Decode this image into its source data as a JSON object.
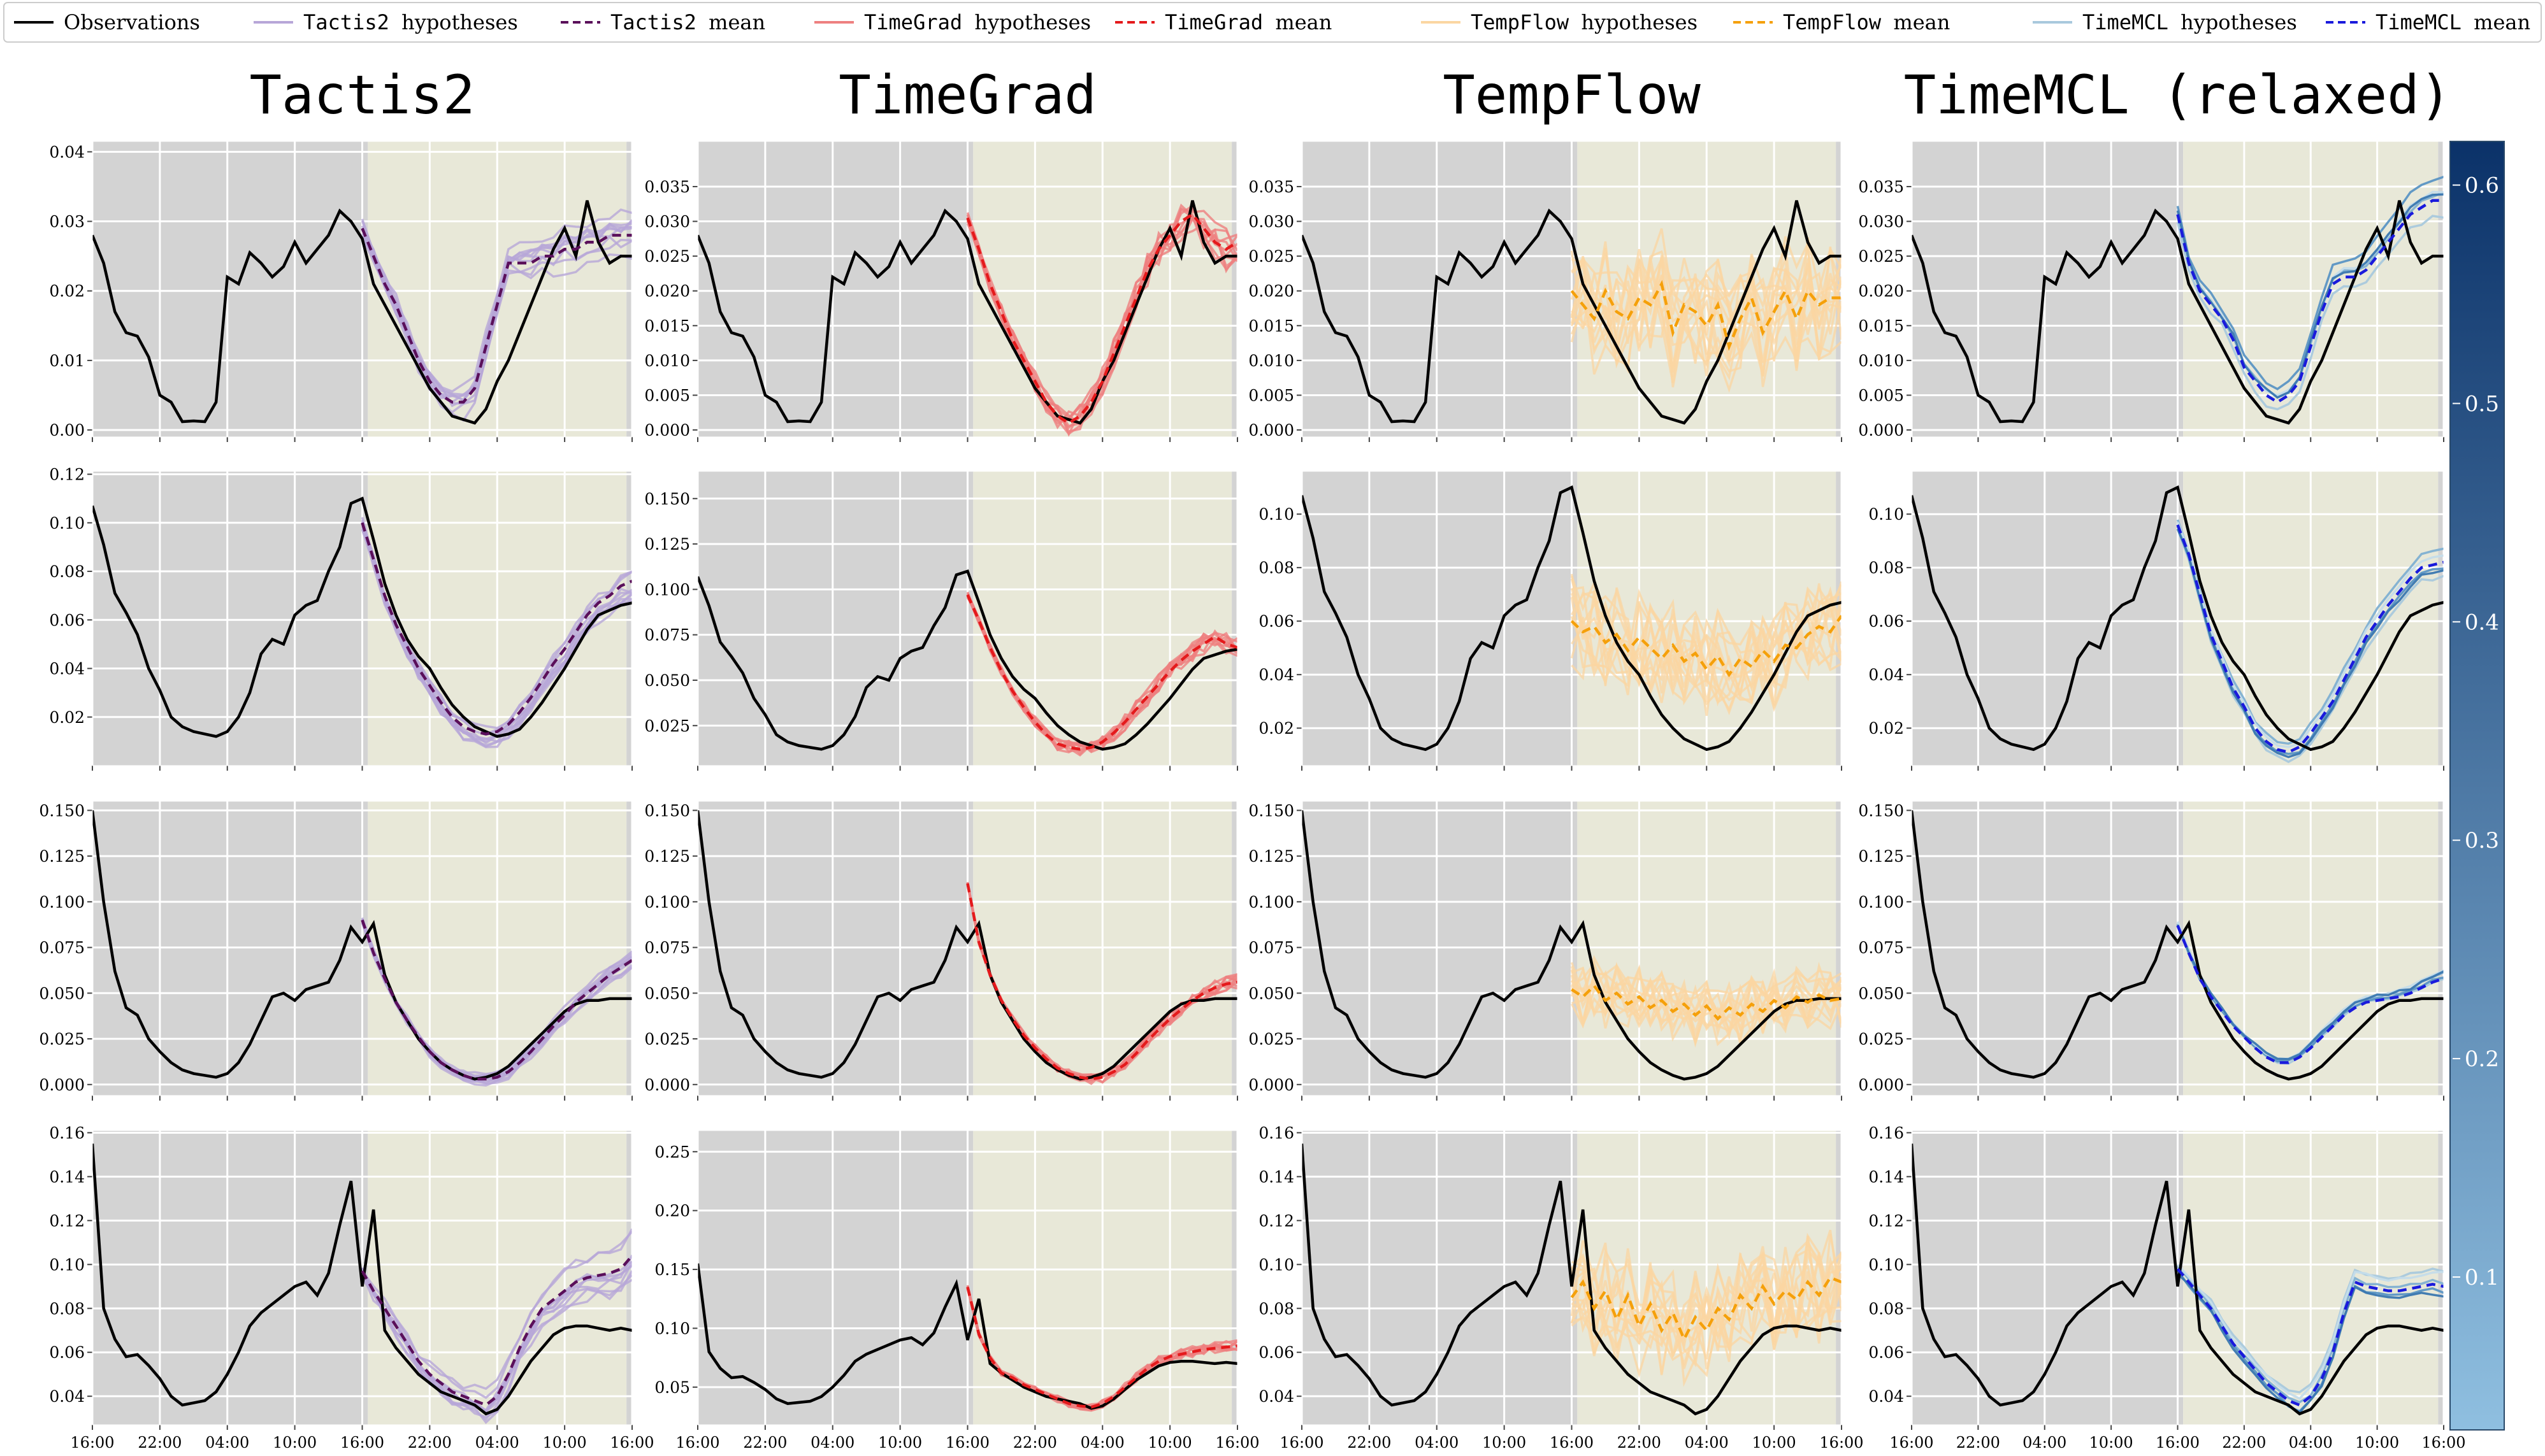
{
  "figure": {
    "type": "line",
    "legend": {
      "placement": "top",
      "entries": [
        {
          "model": "",
          "label": "Observations",
          "color": "#000000",
          "dash": false
        },
        {
          "model": "Tactis2",
          "label": "hypotheses",
          "color": "#b7a6d8",
          "dash": false
        },
        {
          "model": "Tactis2",
          "label": "mean",
          "color": "#5a0f5a",
          "dash": true
        },
        {
          "model": "TimeGrad",
          "label": "hypotheses",
          "color": "#ee8080",
          "dash": false
        },
        {
          "model": "TimeGrad",
          "label": "mean",
          "color": "#e41a1c",
          "dash": true
        },
        {
          "model": "TempFlow",
          "label": "hypotheses",
          "color": "#fbd6a2",
          "dash": false
        },
        {
          "model": "TempFlow",
          "label": "mean",
          "color": "#f5a00a",
          "dash": true
        },
        {
          "model": "TimeMCL",
          "label": "hypotheses",
          "color": "#a9c9dd",
          "dash": false
        },
        {
          "model": "TimeMCL",
          "label": "mean",
          "color": "#1a1adc",
          "dash": true
        }
      ]
    },
    "columns": [
      {
        "title": "Tactis2",
        "hyp_color": "#b7a6d8",
        "mean_color": "#5a0f5a",
        "kind": "tactis"
      },
      {
        "title": "TimeGrad",
        "hyp_color": "#ee8080",
        "mean_color": "#e41a1c",
        "kind": "timegrad"
      },
      {
        "title": "TempFlow",
        "hyp_color": "#fbd6a2",
        "mean_color": "#f5a00a",
        "kind": "tempflow"
      },
      {
        "title": "TimeMCL (relaxed)",
        "hyp_color": "#a9c9dd",
        "mean_color": "#1a1adc",
        "kind": "timemcl"
      }
    ],
    "colors": {
      "context_bg": "#d3d3d3",
      "forecast_bg": "#e8e8d8",
      "grid": "#ffffff",
      "observation": "#000000"
    },
    "colorbar": {
      "ticks": [
        "0.1",
        "0.2",
        "0.3",
        "0.4",
        "0.5",
        "0.6"
      ],
      "range": [
        0.03,
        0.62
      ],
      "color_low": "#8fbfe0",
      "color_high": "#0b3269"
    },
    "xticks": [
      "16:00",
      "22:00",
      "04:00",
      "10:00",
      "16:00",
      "22:00",
      "04:00",
      "10:00",
      "16:00"
    ],
    "x_range": [
      0,
      48
    ],
    "context_end": 24,
    "rows": [
      {
        "ylim": [
          -0.001,
          0.0415
        ],
        "yticks_by_col": [
          [
            "0.00",
            "0.01",
            "0.02",
            "0.03",
            "0.04"
          ],
          [
            "0.000",
            "0.005",
            "0.010",
            "0.015",
            "0.020",
            "0.025",
            "0.030",
            "0.035"
          ],
          [
            "0.000",
            "0.005",
            "0.010",
            "0.015",
            "0.020",
            "0.025",
            "0.030",
            "0.035"
          ],
          [
            "0.000",
            "0.005",
            "0.010",
            "0.015",
            "0.020",
            "0.025",
            "0.030",
            "0.035"
          ]
        ],
        "obs": [
          0.028,
          0.024,
          0.017,
          0.014,
          0.0135,
          0.0105,
          0.005,
          0.004,
          0.0012,
          0.0013,
          0.0012,
          0.004,
          0.022,
          0.021,
          0.0255,
          0.024,
          0.022,
          0.0235,
          0.027,
          0.024,
          0.026,
          0.028,
          0.0315,
          0.03,
          0.0275,
          0.021,
          0.018,
          0.015,
          0.012,
          0.009,
          0.006,
          0.004,
          0.002,
          0.0015,
          0.001,
          0.003,
          0.007,
          0.01,
          0.014,
          0.018,
          0.022,
          0.026,
          0.029,
          0.025,
          0.033,
          0.027,
          0.024,
          0.025,
          0.025
        ],
        "means": [
          [
            0.029,
            0.025,
            0.021,
            0.018,
            0.014,
            0.01,
            0.007,
            0.005,
            0.004,
            0.004,
            0.006,
            0.012,
            0.018,
            0.024,
            0.024,
            0.024,
            0.025,
            0.025,
            0.026,
            0.026,
            0.027,
            0.027,
            0.028,
            0.028,
            0.028
          ],
          [
            0.0305,
            0.026,
            0.021,
            0.017,
            0.013,
            0.01,
            0.007,
            0.004,
            0.002,
            0.001,
            0.002,
            0.004,
            0.007,
            0.011,
            0.015,
            0.019,
            0.023,
            0.026,
            0.028,
            0.03,
            0.031,
            0.029,
            0.027,
            0.026,
            0.027
          ],
          [
            0.02,
            0.018,
            0.016,
            0.02,
            0.017,
            0.016,
            0.019,
            0.018,
            0.021,
            0.014,
            0.018,
            0.017,
            0.015,
            0.018,
            0.012,
            0.016,
            0.019,
            0.014,
            0.017,
            0.02,
            0.016,
            0.02,
            0.018,
            0.019,
            0.019
          ],
          [
            0.031,
            0.024,
            0.02,
            0.018,
            0.016,
            0.013,
            0.009,
            0.007,
            0.005,
            0.004,
            0.005,
            0.007,
            0.012,
            0.017,
            0.021,
            0.022,
            0.022,
            0.023,
            0.025,
            0.027,
            0.029,
            0.031,
            0.032,
            0.033,
            0.033
          ]
        ],
        "hyp_amp": [
          0.004,
          0.003,
          0.008,
          0.004
        ]
      },
      {
        "ylim": [
          0.0,
          0.1212
        ],
        "yticks_by_col": [
          [
            "0.02",
            "0.04",
            "0.06",
            "0.08",
            "0.10",
            "0.12"
          ],
          [
            "0.025",
            "0.050",
            "0.075",
            "0.100",
            "0.125",
            "0.150"
          ],
          [
            "0.02",
            "0.04",
            "0.06",
            "0.08",
            "0.10"
          ],
          [
            "0.02",
            "0.04",
            "0.06",
            "0.08",
            "0.10"
          ]
        ],
        "obs": [
          0.107,
          0.091,
          0.071,
          0.063,
          0.054,
          0.04,
          0.031,
          0.02,
          0.016,
          0.014,
          0.013,
          0.012,
          0.014,
          0.02,
          0.03,
          0.046,
          0.052,
          0.05,
          0.062,
          0.066,
          0.068,
          0.08,
          0.09,
          0.108,
          0.11,
          0.093,
          0.075,
          0.062,
          0.052,
          0.045,
          0.04,
          0.032,
          0.025,
          0.02,
          0.016,
          0.014,
          0.012,
          0.013,
          0.015,
          0.02,
          0.026,
          0.033,
          0.04,
          0.048,
          0.056,
          0.062,
          0.064,
          0.066,
          0.067
        ],
        "means": [
          [
            0.1,
            0.085,
            0.07,
            0.058,
            0.049,
            0.04,
            0.033,
            0.026,
            0.02,
            0.016,
            0.014,
            0.013,
            0.014,
            0.017,
            0.022,
            0.028,
            0.035,
            0.042,
            0.048,
            0.055,
            0.062,
            0.067,
            0.07,
            0.074,
            0.076
          ],
          [
            0.097,
            0.083,
            0.068,
            0.055,
            0.044,
            0.035,
            0.027,
            0.02,
            0.015,
            0.013,
            0.012,
            0.013,
            0.016,
            0.021,
            0.027,
            0.034,
            0.041,
            0.048,
            0.055,
            0.061,
            0.066,
            0.07,
            0.074,
            0.07,
            0.068
          ],
          [
            0.06,
            0.056,
            0.058,
            0.052,
            0.055,
            0.049,
            0.054,
            0.05,
            0.046,
            0.051,
            0.045,
            0.048,
            0.042,
            0.047,
            0.04,
            0.046,
            0.043,
            0.049,
            0.045,
            0.051,
            0.05,
            0.055,
            0.058,
            0.056,
            0.062
          ],
          [
            0.096,
            0.085,
            0.07,
            0.055,
            0.045,
            0.035,
            0.028,
            0.02,
            0.015,
            0.012,
            0.011,
            0.013,
            0.018,
            0.024,
            0.03,
            0.038,
            0.046,
            0.054,
            0.06,
            0.066,
            0.071,
            0.076,
            0.08,
            0.081,
            0.082
          ]
        ],
        "hyp_amp": [
          0.008,
          0.006,
          0.018,
          0.007
        ]
      },
      {
        "ylim": [
          -0.006,
          0.155
        ],
        "yticks_by_col": [
          [
            "0.000",
            "0.025",
            "0.050",
            "0.075",
            "0.100",
            "0.125",
            "0.150"
          ],
          [
            "0.000",
            "0.025",
            "0.050",
            "0.075",
            "0.100",
            "0.125",
            "0.150"
          ],
          [
            "0.000",
            "0.025",
            "0.050",
            "0.075",
            "0.100",
            "0.125",
            "0.150"
          ],
          [
            "0.000",
            "0.025",
            "0.050",
            "0.075",
            "0.100",
            "0.125",
            "0.150"
          ]
        ],
        "obs": [
          0.15,
          0.1,
          0.062,
          0.042,
          0.038,
          0.025,
          0.018,
          0.012,
          0.008,
          0.006,
          0.005,
          0.004,
          0.006,
          0.012,
          0.022,
          0.035,
          0.048,
          0.05,
          0.046,
          0.052,
          0.054,
          0.056,
          0.068,
          0.086,
          0.078,
          0.088,
          0.06,
          0.045,
          0.035,
          0.025,
          0.018,
          0.012,
          0.008,
          0.005,
          0.003,
          0.004,
          0.006,
          0.01,
          0.016,
          0.022,
          0.028,
          0.034,
          0.04,
          0.044,
          0.046,
          0.046,
          0.047,
          0.047,
          0.047
        ],
        "means": [
          [
            0.09,
            0.072,
            0.058,
            0.045,
            0.035,
            0.026,
            0.018,
            0.012,
            0.008,
            0.005,
            0.003,
            0.003,
            0.004,
            0.007,
            0.012,
            0.018,
            0.025,
            0.032,
            0.038,
            0.045,
            0.05,
            0.055,
            0.06,
            0.064,
            0.068
          ],
          [
            0.11,
            0.078,
            0.06,
            0.046,
            0.036,
            0.027,
            0.02,
            0.014,
            0.009,
            0.006,
            0.004,
            0.003,
            0.004,
            0.007,
            0.011,
            0.017,
            0.024,
            0.03,
            0.036,
            0.041,
            0.046,
            0.05,
            0.053,
            0.055,
            0.056
          ],
          [
            0.052,
            0.048,
            0.054,
            0.046,
            0.05,
            0.044,
            0.048,
            0.042,
            0.046,
            0.04,
            0.044,
            0.038,
            0.043,
            0.036,
            0.042,
            0.038,
            0.044,
            0.04,
            0.046,
            0.042,
            0.048,
            0.045,
            0.049,
            0.046,
            0.047
          ],
          [
            0.087,
            0.072,
            0.058,
            0.048,
            0.04,
            0.032,
            0.026,
            0.02,
            0.015,
            0.012,
            0.012,
            0.015,
            0.02,
            0.026,
            0.032,
            0.038,
            0.042,
            0.045,
            0.046,
            0.047,
            0.048,
            0.05,
            0.053,
            0.056,
            0.058
          ]
        ],
        "hyp_amp": [
          0.006,
          0.004,
          0.016,
          0.009
        ]
      },
      {
        "ylim": [
          0.027,
          0.161
        ],
        "yticks_by_col": [
          [
            "0.04",
            "0.06",
            "0.08",
            "0.10",
            "0.12",
            "0.14",
            "0.16"
          ],
          [
            "0.05",
            "0.10",
            "0.15",
            "0.20",
            "0.25"
          ],
          [
            "0.04",
            "0.06",
            "0.08",
            "0.10",
            "0.12",
            "0.14",
            "0.16"
          ],
          [
            "0.04",
            "0.06",
            "0.08",
            "0.10",
            "0.12",
            "0.14",
            "0.16"
          ]
        ],
        "obs": [
          0.155,
          0.08,
          0.066,
          0.058,
          0.059,
          0.054,
          0.048,
          0.04,
          0.036,
          0.037,
          0.038,
          0.042,
          0.05,
          0.06,
          0.072,
          0.078,
          0.082,
          0.086,
          0.09,
          0.092,
          0.086,
          0.096,
          0.118,
          0.138,
          0.09,
          0.125,
          0.07,
          0.062,
          0.056,
          0.05,
          0.046,
          0.042,
          0.04,
          0.038,
          0.036,
          0.032,
          0.034,
          0.04,
          0.048,
          0.056,
          0.062,
          0.068,
          0.071,
          0.072,
          0.072,
          0.071,
          0.07,
          0.071,
          0.07
        ],
        "means": [
          [
            0.097,
            0.088,
            0.08,
            0.072,
            0.064,
            0.056,
            0.05,
            0.046,
            0.042,
            0.04,
            0.038,
            0.036,
            0.04,
            0.05,
            0.062,
            0.072,
            0.08,
            0.084,
            0.088,
            0.092,
            0.094,
            0.095,
            0.096,
            0.098,
            0.104
          ],
          [
            0.135,
            0.095,
            0.075,
            0.062,
            0.058,
            0.052,
            0.048,
            0.044,
            0.04,
            0.036,
            0.034,
            0.033,
            0.036,
            0.042,
            0.05,
            0.058,
            0.066,
            0.072,
            0.076,
            0.078,
            0.08,
            0.082,
            0.083,
            0.084,
            0.085
          ],
          [
            0.085,
            0.092,
            0.08,
            0.088,
            0.075,
            0.086,
            0.072,
            0.082,
            0.07,
            0.078,
            0.066,
            0.076,
            0.07,
            0.08,
            0.075,
            0.086,
            0.08,
            0.09,
            0.082,
            0.088,
            0.084,
            0.092,
            0.086,
            0.094,
            0.092
          ],
          [
            0.098,
            0.092,
            0.086,
            0.08,
            0.072,
            0.064,
            0.058,
            0.052,
            0.046,
            0.042,
            0.038,
            0.036,
            0.04,
            0.048,
            0.06,
            0.078,
            0.092,
            0.09,
            0.089,
            0.088,
            0.088,
            0.089,
            0.09,
            0.091,
            0.09
          ]
        ],
        "hyp_amp": [
          0.01,
          0.005,
          0.022,
          0.01
        ]
      }
    ]
  }
}
